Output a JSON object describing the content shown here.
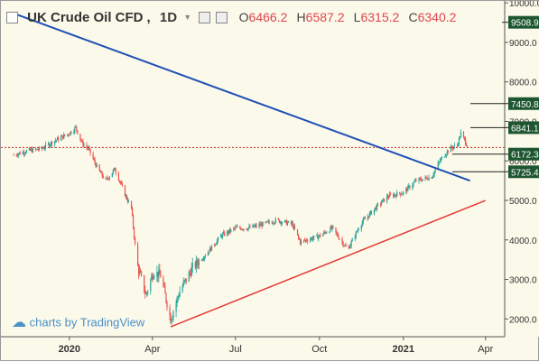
{
  "header": {
    "symbol": "UK Crude Oil CFD",
    "interval": "1D",
    "ohlc": [
      {
        "label": "O",
        "value": "6466.2"
      },
      {
        "label": "H",
        "value": "6587.2"
      },
      {
        "label": "L",
        "value": "6315.2"
      },
      {
        "label": "C",
        "value": "6340.2"
      }
    ]
  },
  "watermark": "charts by TradingView",
  "colors": {
    "background": "#fbf9ea",
    "candle_up": "#26a69a",
    "candle_down": "#ef5350",
    "trendline_blue": "#1f4fb6",
    "trendline_red": "#e53935",
    "label_fill": "#1e5631",
    "price_line": "#c62828"
  },
  "chart_data": {
    "type": "candlestick",
    "title": "UK Crude Oil CFD, 1D",
    "x_tick_labels": [
      "2020",
      "Apr",
      "Jul",
      "Oct",
      "2021",
      "Apr"
    ],
    "y_tick_labels": [
      "2000.0",
      "3000.0",
      "4000.0",
      "5000.0",
      "6000.0",
      "7000.0",
      "8000.0",
      "9000.0",
      "10000.0"
    ],
    "ylim": [
      1550,
      10050
    ],
    "grid": false,
    "price_labels": [
      "9508.9",
      "7450.8",
      "6841.1",
      "6172.3",
      "5725.4"
    ],
    "current_price": "6340.2",
    "close_path": [
      [
        "2019-11-01",
        6150
      ],
      [
        "2019-11-15",
        6250
      ],
      [
        "2019-12-01",
        6300
      ],
      [
        "2019-12-15",
        6500
      ],
      [
        "2020-01-01",
        6700
      ],
      [
        "2020-01-08",
        6850
      ],
      [
        "2020-01-15",
        6450
      ],
      [
        "2020-01-22",
        6300
      ],
      [
        "2020-02-01",
        5800
      ],
      [
        "2020-02-10",
        5500
      ],
      [
        "2020-02-20",
        5800
      ],
      [
        "2020-03-01",
        5200
      ],
      [
        "2020-03-09",
        4800
      ],
      [
        "2020-03-15",
        3400
      ],
      [
        "2020-03-25",
        2600
      ],
      [
        "2020-04-02",
        3200
      ],
      [
        "2020-04-10",
        3100
      ],
      [
        "2020-04-21",
        2000
      ],
      [
        "2020-05-01",
        2700
      ],
      [
        "2020-05-15",
        3300
      ],
      [
        "2020-06-01",
        3700
      ],
      [
        "2020-06-15",
        4100
      ],
      [
        "2020-07-01",
        4300
      ],
      [
        "2020-07-15",
        4300
      ],
      [
        "2020-08-01",
        4400
      ],
      [
        "2020-08-15",
        4500
      ],
      [
        "2020-09-01",
        4400
      ],
      [
        "2020-09-10",
        3950
      ],
      [
        "2020-10-01",
        4100
      ],
      [
        "2020-10-15",
        4300
      ],
      [
        "2020-11-01",
        3750
      ],
      [
        "2020-11-15",
        4400
      ],
      [
        "2020-12-01",
        4800
      ],
      [
        "2020-12-15",
        5100
      ],
      [
        "2021-01-01",
        5200
      ],
      [
        "2021-01-15",
        5500
      ],
      [
        "2021-02-01",
        5600
      ],
      [
        "2021-02-10",
        6000
      ],
      [
        "2021-02-20",
        6300
      ],
      [
        "2021-03-01",
        6400
      ],
      [
        "2021-03-05",
        6700
      ],
      [
        "2021-03-12",
        6400
      ]
    ],
    "trendlines": [
      {
        "color": "blue",
        "from": [
          "2019-11-05",
          9700
        ],
        "to": [
          "2021-03-15",
          5500
        ]
      },
      {
        "color": "red",
        "from": [
          "2020-04-21",
          1800
        ],
        "to": [
          "2021-04-01",
          5000
        ]
      }
    ],
    "horizontal_line": {
      "value": 6340.2,
      "style": "dotted"
    }
  }
}
